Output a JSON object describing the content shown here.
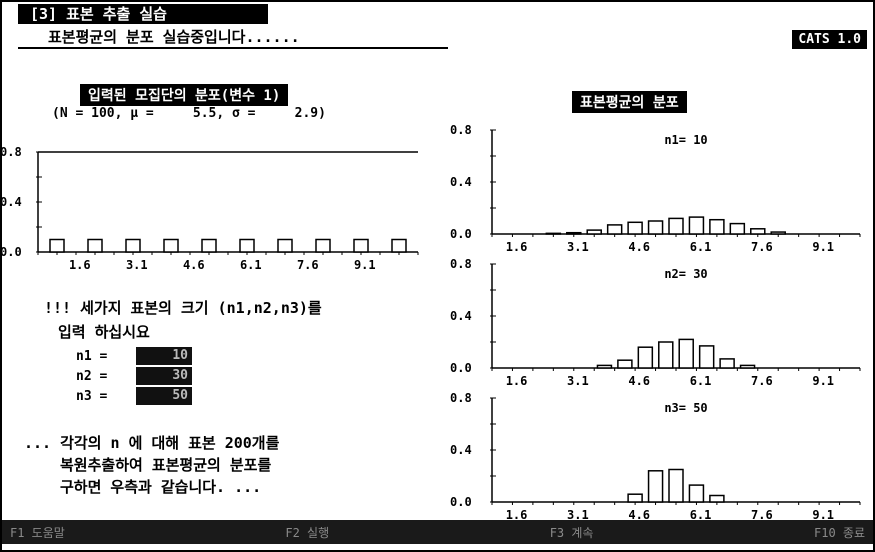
{
  "header": {
    "title": "[3] 표본 추출 실습",
    "status": "표본평균의 분포 실습중입니다......",
    "version": "CATS 1.0"
  },
  "left": {
    "heading": "입력된 모집단의 분포(변수 1)",
    "stats": "(N = 100, μ =     5.5, σ =     2.9)",
    "prompt_line1": "!!! 세가지 표본의 크기 (n1,n2,n3)를",
    "prompt_line2": "입력 하십시요",
    "inputs": [
      {
        "label": "n1 =",
        "value": "10"
      },
      {
        "label": "n2 =",
        "value": "30"
      },
      {
        "label": "n3 =",
        "value": "50"
      }
    ],
    "note_line1": "... 각각의 n 에 대해 표본 200개를",
    "note_line2": "복원추출하여 표본평균의 분포를",
    "note_line3": "구하면 우측과 같습니다. ..."
  },
  "right": {
    "heading": "표본평균의 분포"
  },
  "bottom": {
    "items": [
      "F1 도움말",
      "F2 실행",
      "F3 계속",
      "F10 종료"
    ]
  },
  "chart_data": [
    {
      "type": "bar",
      "ylim": [
        0,
        0.8
      ],
      "yticks": [
        "0.8",
        "0.4",
        "0.0"
      ],
      "xticks": [
        "1.6",
        "3.1",
        "4.6",
        "6.1",
        "7.6",
        "9.1"
      ],
      "title": "",
      "x": [
        1,
        2,
        3,
        4,
        5,
        6,
        7,
        8,
        9,
        10
      ],
      "values": [
        0.1,
        0.1,
        0.1,
        0.1,
        0.1,
        0.1,
        0.1,
        0.1,
        0.1,
        0.1
      ]
    },
    {
      "type": "bar",
      "ylim": [
        0,
        0.8
      ],
      "yticks": [
        "0.8",
        "0.4",
        "0.0"
      ],
      "xticks": [
        "1.6",
        "3.1",
        "4.6",
        "6.1",
        "7.6",
        "9.1"
      ],
      "title": "n1= 10",
      "x": [
        2.5,
        3.0,
        3.5,
        4.0,
        4.5,
        5.0,
        5.5,
        6.0,
        6.5,
        7.0,
        7.5,
        8.0
      ],
      "values": [
        0.005,
        0.01,
        0.03,
        0.07,
        0.09,
        0.1,
        0.12,
        0.13,
        0.11,
        0.08,
        0.04,
        0.015
      ]
    },
    {
      "type": "bar",
      "ylim": [
        0,
        0.8
      ],
      "yticks": [
        "0.8",
        "0.4",
        "0.0"
      ],
      "xticks": [
        "1.6",
        "3.1",
        "4.6",
        "6.1",
        "7.6",
        "9.1"
      ],
      "title": "n2= 30",
      "x": [
        3.75,
        4.25,
        4.75,
        5.25,
        5.75,
        6.25,
        6.75,
        7.25
      ],
      "values": [
        0.02,
        0.06,
        0.16,
        0.2,
        0.22,
        0.17,
        0.07,
        0.02
      ]
    },
    {
      "type": "bar",
      "ylim": [
        0,
        0.8
      ],
      "yticks": [
        "0.8",
        "0.4",
        "0.0"
      ],
      "xticks": [
        "1.6",
        "3.1",
        "4.6",
        "6.1",
        "7.6",
        "9.1"
      ],
      "title": "n3= 50",
      "x": [
        4.5,
        5.0,
        5.5,
        6.0,
        6.5
      ],
      "values": [
        0.06,
        0.24,
        0.25,
        0.13,
        0.05
      ]
    }
  ]
}
